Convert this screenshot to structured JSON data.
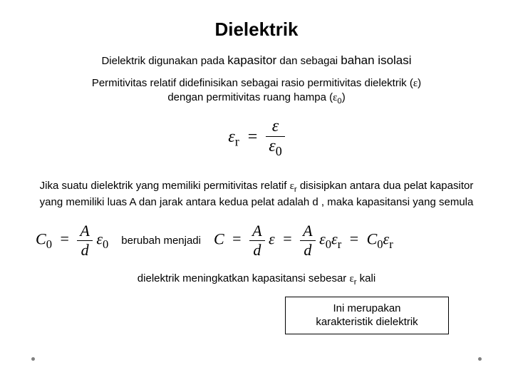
{
  "title": "Dielektrik",
  "line1": {
    "p1": "Dielektrik digunakan pada ",
    "kapasitor": "kapasitor",
    "p2": " dan sebagai ",
    "bahan": "bahan isolasi"
  },
  "para1": {
    "l1": "Permitivitas relatif didefinisikan sebagai rasio permitivitas dielektrik  (",
    "eps": "ε",
    "l1b": ")",
    "l2a": "dengan permitivitas ruang hampa (",
    "eps0": "ε",
    "sub0": "0",
    "l2b": ")"
  },
  "formula1": {
    "lhs_eps": "ε",
    "lhs_sub": "r",
    "eq": "=",
    "num": "ε",
    "den_eps": "ε",
    "den_sub": "0"
  },
  "para2": {
    "t1": "Jika suatu dielektrik yang memiliki permitivitas relatif ",
    "eps": "ε",
    "sub": "r",
    "t2": " disisipkan antara dua pelat kapasitor yang memiliki luas A dan jarak antara kedua pelat adalah d , maka kapasitansi yang semula"
  },
  "formula2": {
    "C": "C",
    "sub0": "0",
    "eq": "=",
    "A": "A",
    "d": "d",
    "eps": "ε",
    "epssub": "0"
  },
  "mid": "berubah menjadi",
  "formula3": {
    "C": "C",
    "eq": "=",
    "A": "A",
    "d": "d",
    "eps": "ε",
    "eps0": "ε",
    "sub0": "0",
    "epsr": "ε",
    "subr": "r",
    "C0": "C",
    "C0sub": "0"
  },
  "para3": {
    "t1": "dielektrik meningkatkan kapasitansi sebesar ",
    "eps": "ε",
    "sub": "r",
    "t2": " kali"
  },
  "box": {
    "l1": "Ini merupakan",
    "l2": "karakteristik dielektrik"
  }
}
